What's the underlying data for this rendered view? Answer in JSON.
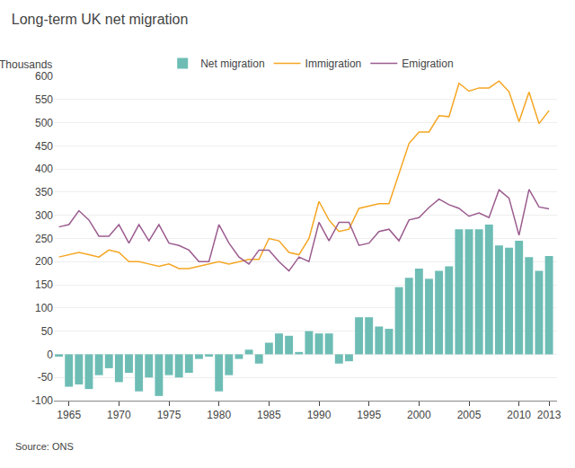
{
  "chart_data": {
    "type": "bar",
    "title": "Long-term UK net migration",
    "subtitle": "Thousands",
    "annotations": [
      "Source: ONS"
    ],
    "x": [
      1964,
      1965,
      1966,
      1967,
      1968,
      1969,
      1970,
      1971,
      1972,
      1973,
      1974,
      1975,
      1976,
      1977,
      1978,
      1979,
      1980,
      1981,
      1982,
      1983,
      1984,
      1985,
      1986,
      1987,
      1988,
      1989,
      1990,
      1991,
      1992,
      1993,
      1994,
      1995,
      1996,
      1997,
      1998,
      1999,
      2000,
      2001,
      2002,
      2003,
      2004,
      2005,
      2006,
      2007,
      2008,
      2009,
      2010,
      2011,
      2012,
      2013
    ],
    "series": [
      {
        "name": "Net migration",
        "type": "bar",
        "color": "#6dbdb5",
        "values": [
          -5,
          -70,
          -65,
          -75,
          -45,
          -30,
          -60,
          -40,
          -80,
          -50,
          -90,
          -45,
          -50,
          -40,
          -10,
          -5,
          -80,
          -45,
          -10,
          10,
          -20,
          25,
          45,
          40,
          5,
          50,
          45,
          45,
          -20,
          -15,
          80,
          80,
          60,
          55,
          145,
          165,
          185,
          163,
          180,
          190,
          270,
          270,
          270,
          280,
          235,
          230,
          245,
          210,
          180,
          212
        ]
      },
      {
        "name": "Immigration",
        "type": "line",
        "color": "#f5a623",
        "values": [
          210,
          215,
          220,
          215,
          210,
          225,
          220,
          200,
          200,
          195,
          190,
          195,
          185,
          185,
          190,
          195,
          200,
          195,
          200,
          205,
          205,
          250,
          245,
          220,
          215,
          250,
          330,
          290,
          265,
          270,
          315,
          320,
          325,
          325,
          390,
          455,
          480,
          480,
          515,
          513,
          585,
          568,
          575,
          575,
          590,
          567,
          502,
          566,
          498,
          526
        ]
      },
      {
        "name": "Emigration",
        "type": "line",
        "color": "#9b5c8f",
        "values": [
          275,
          280,
          310,
          290,
          255,
          255,
          280,
          240,
          280,
          245,
          280,
          240,
          235,
          225,
          200,
          200,
          280,
          240,
          210,
          195,
          225,
          225,
          200,
          180,
          210,
          200,
          285,
          245,
          285,
          285,
          235,
          240,
          265,
          270,
          245,
          290,
          295,
          317,
          335,
          323,
          315,
          298,
          305,
          295,
          355,
          337,
          257,
          356,
          318,
          314
        ]
      }
    ],
    "xlim": [
      1963.5,
      2013.8
    ],
    "xticks": [
      1965,
      1970,
      1975,
      1980,
      1985,
      1990,
      1995,
      2000,
      2005,
      2010,
      2013
    ],
    "ylim": [
      -100,
      600
    ],
    "yticks": [
      -100,
      -50,
      0,
      50,
      100,
      150,
      200,
      250,
      300,
      350,
      400,
      450,
      500,
      550,
      600
    ],
    "grid": true,
    "legend": "top"
  }
}
